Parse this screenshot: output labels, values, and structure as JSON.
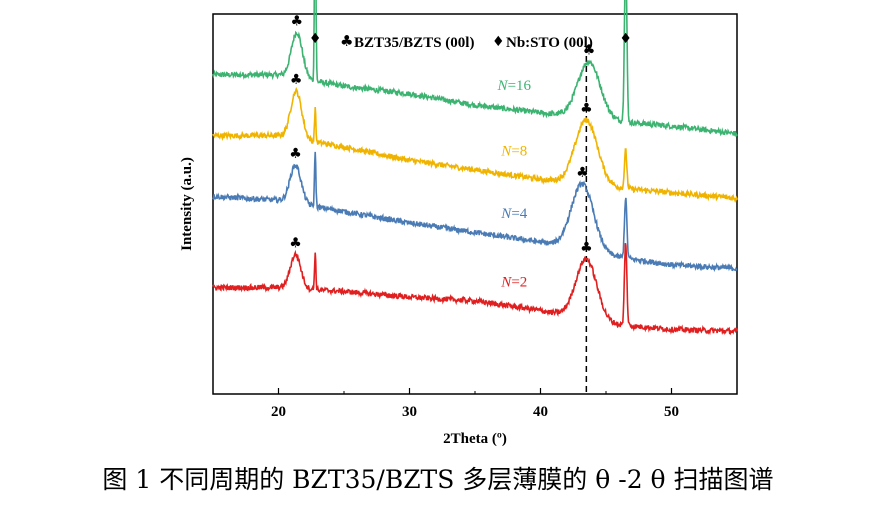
{
  "caption": "图 1 不同周期的 BZT35/BZTS 多层薄膜的 θ -2 θ 扫描图谱",
  "chart_data": {
    "type": "line",
    "title": "",
    "xlabel": "2Theta (º)",
    "ylabel": "Intensity (a.u.)",
    "xlim": [
      15,
      55
    ],
    "x_ticks": [
      20,
      30,
      40,
      50
    ],
    "ylim": [
      0,
      10
    ],
    "y_ticks_shown": false,
    "grid": false,
    "legend": {
      "placement": "top",
      "entries": [
        {
          "symbol": "♣",
          "label": "BZT35/BZTS (00l)"
        },
        {
          "symbol": "♦",
          "label": "Nb:STO (00l)"
        }
      ]
    },
    "reference_line": {
      "x": 43.5,
      "style": "dashed",
      "color": "#000000"
    },
    "series": [
      {
        "name": "N=16",
        "color": "#3cb371",
        "label_x": 38,
        "baseline": [
          [
            15,
            8.4
          ],
          [
            20,
            8.4
          ],
          [
            25,
            8.1
          ],
          [
            30,
            7.9
          ],
          [
            35,
            7.6
          ],
          [
            40,
            7.4
          ],
          [
            45,
            7.2
          ],
          [
            50,
            7.05
          ],
          [
            55,
            6.85
          ]
        ],
        "peaks": [
          {
            "center": 21.4,
            "width": 0.42,
            "height": 1.2,
            "marker": "♣"
          },
          {
            "center": 22.8,
            "width": 0.05,
            "height": 5.8,
            "marker": "♦"
          },
          {
            "center": 43.7,
            "width": 0.85,
            "height": 1.5,
            "marker": "♣"
          },
          {
            "center": 46.5,
            "width": 0.09,
            "height": 4.4,
            "marker": "♦"
          }
        ]
      },
      {
        "name": "N=8",
        "color": "#f0b400",
        "label_x": 38,
        "baseline": [
          [
            15,
            6.8
          ],
          [
            20,
            6.8
          ],
          [
            25,
            6.5
          ],
          [
            30,
            6.15
          ],
          [
            35,
            5.9
          ],
          [
            40,
            5.65
          ],
          [
            45,
            5.45
          ],
          [
            50,
            5.3
          ],
          [
            55,
            5.15
          ]
        ],
        "peaks": [
          {
            "center": 21.35,
            "width": 0.42,
            "height": 1.25,
            "marker": "♣"
          },
          {
            "center": 22.8,
            "width": 0.05,
            "height": 0.9,
            "marker": ""
          },
          {
            "center": 43.5,
            "width": 0.85,
            "height": 1.7,
            "marker": "♣"
          },
          {
            "center": 46.5,
            "width": 0.09,
            "height": 1.0,
            "marker": ""
          }
        ]
      },
      {
        "name": "N=4",
        "color": "#4a7bb5",
        "label_x": 38,
        "baseline": [
          [
            15,
            5.2
          ],
          [
            20,
            5.1
          ],
          [
            25,
            4.8
          ],
          [
            30,
            4.5
          ],
          [
            35,
            4.25
          ],
          [
            40,
            4.0
          ],
          [
            45,
            3.65
          ],
          [
            50,
            3.4
          ],
          [
            55,
            3.3
          ]
        ],
        "peaks": [
          {
            "center": 21.3,
            "width": 0.42,
            "height": 1.0,
            "marker": "♣"
          },
          {
            "center": 22.8,
            "width": 0.05,
            "height": 1.5,
            "marker": ""
          },
          {
            "center": 43.2,
            "width": 0.85,
            "height": 1.75,
            "marker": "♣"
          },
          {
            "center": 46.5,
            "width": 0.09,
            "height": 1.6,
            "marker": ""
          }
        ]
      },
      {
        "name": "N=2",
        "color": "#e02020",
        "label_x": 38,
        "baseline": [
          [
            15,
            2.8
          ],
          [
            20,
            2.8
          ],
          [
            25,
            2.7
          ],
          [
            30,
            2.55
          ],
          [
            35,
            2.45
          ],
          [
            40,
            2.2
          ],
          [
            45,
            1.85
          ],
          [
            50,
            1.7
          ],
          [
            55,
            1.65
          ]
        ],
        "peaks": [
          {
            "center": 21.3,
            "width": 0.4,
            "height": 0.9,
            "marker": "♣"
          },
          {
            "center": 22.8,
            "width": 0.05,
            "height": 1.0,
            "marker": ""
          },
          {
            "center": 43.5,
            "width": 0.8,
            "height": 1.6,
            "marker": "♣"
          },
          {
            "center": 46.5,
            "width": 0.09,
            "height": 2.2,
            "marker": ""
          }
        ]
      }
    ],
    "top_markers": [
      {
        "x": 22.8,
        "symbol": "♦"
      },
      {
        "x": 46.5,
        "symbol": "♦"
      }
    ]
  }
}
